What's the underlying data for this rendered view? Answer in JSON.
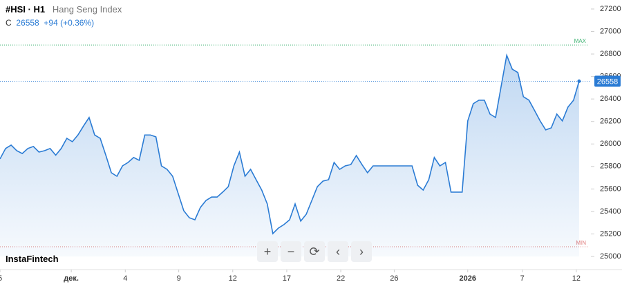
{
  "header": {
    "symbol": "#HSI · H1",
    "name": "Hang Seng Index",
    "close_label": "C",
    "change": "+94 (+0.36%)"
  },
  "logo": "InstaFintech",
  "chart_data": {
    "type": "area",
    "color": "#2a7bd4",
    "values": [
      25867,
      25960,
      25990,
      25940,
      25915,
      25960,
      25978,
      25928,
      25940,
      25960,
      25900,
      25960,
      26050,
      26020,
      26080,
      26160,
      26235,
      26080,
      26050,
      25900,
      25744,
      25713,
      25805,
      25836,
      25880,
      25855,
      26080,
      26080,
      26063,
      25805,
      25774,
      25713,
      25560,
      25406,
      25344,
      25326,
      25436,
      25498,
      25528,
      25528,
      25572,
      25620,
      25805,
      25928,
      25713,
      25774,
      25682,
      25590,
      25467,
      25203,
      25252,
      25283,
      25326,
      25467,
      25314,
      25375,
      25498,
      25620,
      25670,
      25682,
      25836,
      25774,
      25805,
      25817,
      25897,
      25817,
      25744,
      25805,
      25805,
      25805,
      25805,
      25805,
      25805,
      25805,
      25805,
      25633,
      25590,
      25682,
      25880,
      25805,
      25836,
      25572,
      25572,
      25572,
      26205,
      26358,
      26389,
      26389,
      26266,
      26235,
      26512,
      26788,
      26665,
      26635,
      26420,
      26389,
      26297,
      26205,
      26125,
      26143,
      26266,
      26205,
      26328,
      26389,
      26558
    ],
    "xlim": [
      0,
      105.5
    ],
    "xticks": [
      {
        "value": 0,
        "label": "5"
      },
      {
        "value": 12.8,
        "label": "дек."
      },
      {
        "value": 22.5,
        "label": "4"
      },
      {
        "value": 32.1,
        "label": "9"
      },
      {
        "value": 41.8,
        "label": "12"
      },
      {
        "value": 51.5,
        "label": "17"
      },
      {
        "value": 61.2,
        "label": "22"
      },
      {
        "value": 70.8,
        "label": "26"
      },
      {
        "value": 84,
        "label": "2026"
      },
      {
        "value": 93.8,
        "label": "7"
      },
      {
        "value": 103.5,
        "label": "12"
      }
    ],
    "ylim": [
      25000,
      27200
    ],
    "yticks": [
      25000,
      25200,
      25400,
      25600,
      25800,
      26000,
      26200,
      26400,
      26600,
      26800,
      27000,
      27200
    ],
    "grid": false,
    "max_line": {
      "value": 26880,
      "label": "MAX"
    },
    "min_line": {
      "value": 25086,
      "label": "MIN"
    }
  }
}
